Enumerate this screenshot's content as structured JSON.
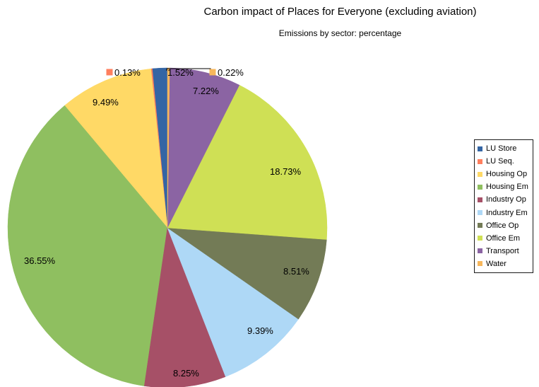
{
  "chart_data": {
    "type": "pie",
    "title": "Carbon impact of Places for Everyone (excluding aviation)",
    "subtitle": "Emissions by sector: percentage",
    "slices": [
      {
        "name": "LU Store",
        "value": 1.52,
        "label": "1.52%",
        "color": "#3465a4"
      },
      {
        "name": "LU Seq.",
        "value": 0.13,
        "label": "0.13%",
        "color": "#ff7f5e"
      },
      {
        "name": "Housing Op",
        "value": 9.49,
        "label": "9.49%",
        "color": "#ffd966"
      },
      {
        "name": "Housing Em",
        "value": 36.55,
        "label": "36.55%",
        "color": "#8fbf60"
      },
      {
        "name": "Industry Op",
        "value": 8.25,
        "label": "8.25%",
        "color": "#a65067"
      },
      {
        "name": "Industry Em",
        "value": 9.39,
        "label": "9.39%",
        "color": "#aed8f6"
      },
      {
        "name": "Office Op",
        "value": 8.51,
        "label": "8.51%",
        "color": "#737b56"
      },
      {
        "name": "Office Em",
        "value": 18.73,
        "label": "18.73%",
        "color": "#cfe055"
      },
      {
        "name": "Transport",
        "value": 7.22,
        "label": "7.22%",
        "color": "#8b64a3"
      },
      {
        "name": "Water",
        "value": 0.22,
        "label": "0.22%",
        "color": "#f7b75c"
      }
    ],
    "legend_position": "right",
    "data_label_colors": {
      "Housing Op": "#000000",
      "Transport": "#ffffff"
    }
  }
}
